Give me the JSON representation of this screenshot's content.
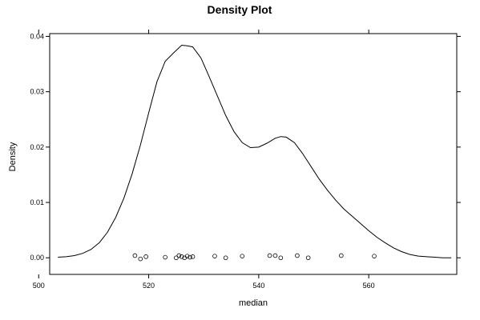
{
  "chart_data": {
    "type": "line",
    "title": "Density Plot",
    "xlabel": "median",
    "ylabel": "Density",
    "xlim": [
      502,
      576
    ],
    "ylim": [
      -0.003,
      0.0405
    ],
    "x_ticks": [
      500,
      520,
      540,
      560
    ],
    "x_tick_labels": [
      "500",
      "520",
      "540",
      "560"
    ],
    "y_ticks": [
      0.0,
      0.01,
      0.02,
      0.03,
      0.04
    ],
    "y_tick_labels": [
      "0.00",
      "0.01",
      "0.02",
      "0.03",
      "0.04"
    ],
    "grid": false,
    "legend": "none",
    "series": [
      {
        "x": [
          503.5,
          505,
          506.5,
          508,
          509.5,
          511,
          512.5,
          514,
          515.5,
          517,
          518.5,
          520,
          521.5,
          523,
          524.5,
          526,
          527,
          528,
          529.5,
          531,
          532.5,
          534,
          535.5,
          537,
          538.5,
          540,
          541.5,
          543,
          544,
          545,
          546.5,
          548,
          549.5,
          551,
          552.5,
          554,
          555.5,
          557,
          558.5,
          560,
          561.5,
          563,
          564.5,
          566,
          567.5,
          569,
          570.5,
          572,
          573.5,
          575
        ],
        "y": [
          0.0001,
          0.0002,
          0.0004,
          0.0008,
          0.0015,
          0.0027,
          0.0046,
          0.0073,
          0.0108,
          0.0152,
          0.0204,
          0.0262,
          0.0318,
          0.0355,
          0.037,
          0.0384,
          0.0383,
          0.0381,
          0.0361,
          0.0327,
          0.0292,
          0.0257,
          0.0228,
          0.0208,
          0.0199,
          0.02,
          0.0207,
          0.0216,
          0.0219,
          0.0218,
          0.0208,
          0.0188,
          0.0165,
          0.0142,
          0.0122,
          0.0104,
          0.0088,
          0.0075,
          0.0062,
          0.0049,
          0.0037,
          0.0027,
          0.0018,
          0.0011,
          0.0006,
          0.0003,
          0.0002,
          0.0001,
          0.0,
          0.0
        ]
      }
    ],
    "rug": {
      "x": [
        517.5,
        518.5,
        519.5,
        523,
        525,
        525.5,
        526,
        526.5,
        527,
        527.5,
        528,
        532,
        534,
        537,
        542,
        543,
        544,
        547,
        549,
        555,
        561
      ],
      "y": [
        0.0004,
        -0.0002,
        0.0002,
        0.0001,
        0.0,
        0.0004,
        0.0002,
        0.0,
        0.0003,
        0.0001,
        0.0002,
        0.0003,
        0.0,
        0.0003,
        0.0004,
        0.0004,
        0.0,
        0.0004,
        0.0,
        0.0004,
        0.0003
      ]
    }
  }
}
